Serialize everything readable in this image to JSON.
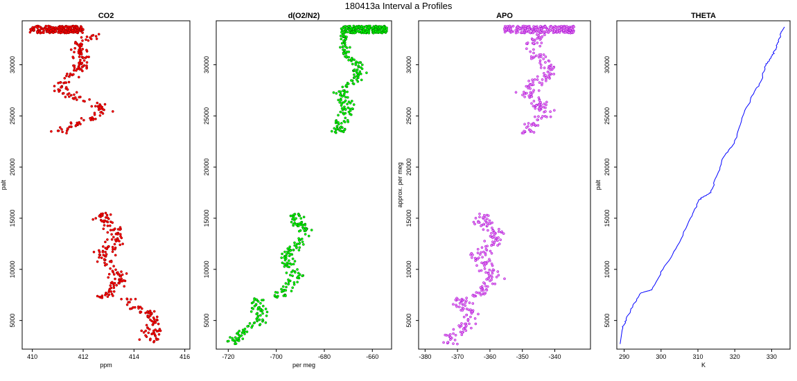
{
  "figure_title": "180413a   Interval a Profiles",
  "chart_data": [
    {
      "type": "scatter",
      "title": "CO2",
      "xlabel": "ppm",
      "ylabel": "palt",
      "xlim": [
        409.6,
        416.2
      ],
      "ylim": [
        2200,
        34300
      ],
      "xticks": [
        410,
        412,
        414,
        416
      ],
      "yticks": [
        5000,
        10000,
        15000,
        20000,
        25000,
        30000
      ],
      "color": "#ff0000",
      "edge_color": "#880000",
      "segments": [
        {
          "y_start": 2700,
          "y_end": 7200,
          "x_start": 415.0,
          "x_end": 414.0,
          "jitter": 0.55
        },
        {
          "y_start": 7200,
          "y_end": 15600,
          "x_start": 413.2,
          "x_end": 413.0,
          "jitter": 0.55
        },
        {
          "y_start": 23300,
          "y_end": 25500,
          "x_start": 411.3,
          "x_end": 412.6,
          "jitter": 0.6
        },
        {
          "y_start": 25500,
          "y_end": 28000,
          "x_start": 412.6,
          "x_end": 411.3,
          "jitter": 0.55
        },
        {
          "y_start": 28000,
          "y_end": 30300,
          "x_start": 411.3,
          "x_end": 411.7,
          "jitter": 0.5
        },
        {
          "y_start": 30300,
          "y_end": 33000,
          "x_start": 411.9,
          "x_end": 412.3,
          "jitter": 0.45
        }
      ],
      "top_band": {
        "y_start": 33100,
        "y_end": 33800,
        "x_min": 409.9,
        "x_max": 412.0
      }
    },
    {
      "type": "scatter",
      "title": "d(O2/N2)",
      "xlabel": "per meg",
      "ylabel": "",
      "xlim": [
        -725,
        -652
      ],
      "ylim": [
        2200,
        34300
      ],
      "xticks": [
        -720,
        -700,
        -680,
        -660
      ],
      "yticks": [
        5000,
        10000,
        15000,
        20000,
        25000,
        30000
      ],
      "color": "#00ff00",
      "edge_color": "#006600",
      "segments": [
        {
          "y_start": 2700,
          "y_end": 7200,
          "x_start": -716,
          "x_end": -705,
          "jitter": 5
        },
        {
          "y_start": 7200,
          "y_end": 15600,
          "x_start": -697,
          "x_end": -689,
          "jitter": 5
        },
        {
          "y_start": 23300,
          "y_end": 25500,
          "x_start": -671,
          "x_end": -674,
          "jitter": 5
        },
        {
          "y_start": 25500,
          "y_end": 28000,
          "x_start": -674,
          "x_end": -669,
          "jitter": 5
        },
        {
          "y_start": 28000,
          "y_end": 30300,
          "x_start": -667,
          "x_end": -668,
          "jitter": 4
        },
        {
          "y_start": 30300,
          "y_end": 33000,
          "x_start": -669,
          "x_end": -672,
          "jitter": 3.5
        }
      ],
      "top_band": {
        "y_start": 33100,
        "y_end": 33800,
        "x_min": -673,
        "x_max": -654
      }
    },
    {
      "type": "scatter",
      "title": "APO",
      "xlabel": "",
      "ylabel": "approx. per meg",
      "xlim": [
        -382,
        -329
      ],
      "ylim": [
        2200,
        34300
      ],
      "xticks": [
        -380,
        -370,
        -360,
        -350,
        -340
      ],
      "yticks": [
        5000,
        10000,
        15000,
        20000,
        25000,
        30000
      ],
      "color": "#ee82ee",
      "edge_color": "#9400d3",
      "segments": [
        {
          "y_start": 2700,
          "y_end": 7200,
          "x_start": -370,
          "x_end": -366,
          "jitter": 5
        },
        {
          "y_start": 7200,
          "y_end": 15600,
          "x_start": -362,
          "x_end": -360,
          "jitter": 5
        },
        {
          "y_start": 23300,
          "y_end": 28000,
          "x_start": -346,
          "x_end": -346,
          "jitter": 4.5
        },
        {
          "y_start": 28000,
          "y_end": 33000,
          "x_start": -344,
          "x_end": -345,
          "jitter": 4.5
        }
      ],
      "top_band": {
        "y_start": 33100,
        "y_end": 33800,
        "x_min": -356,
        "x_max": -334
      }
    },
    {
      "type": "line",
      "title": "THETA",
      "xlabel": "K",
      "ylabel": "palt",
      "xlim": [
        288,
        335
      ],
      "ylim": [
        2200,
        34300
      ],
      "xticks": [
        290,
        300,
        310,
        320,
        330
      ],
      "yticks": [
        5000,
        10000,
        15000,
        20000,
        25000,
        30000
      ],
      "color": "#0000ff",
      "x": [
        288.9,
        289.5,
        290.5,
        292.5,
        294.5,
        297.5,
        300.5,
        304.5,
        308.0,
        310.3,
        311.5,
        313.5,
        315.0,
        317.0,
        320.0,
        322.0,
        324.5,
        327.0,
        328.5,
        329.8,
        331.0,
        332.0,
        332.8,
        333.5
      ],
      "y": [
        2700,
        4200,
        5000,
        6500,
        7700,
        8000,
        10000,
        12300,
        15000,
        16800,
        17100,
        17500,
        19000,
        21000,
        22300,
        24800,
        26800,
        28300,
        30000,
        30700,
        31500,
        32500,
        33300,
        33700
      ]
    }
  ]
}
